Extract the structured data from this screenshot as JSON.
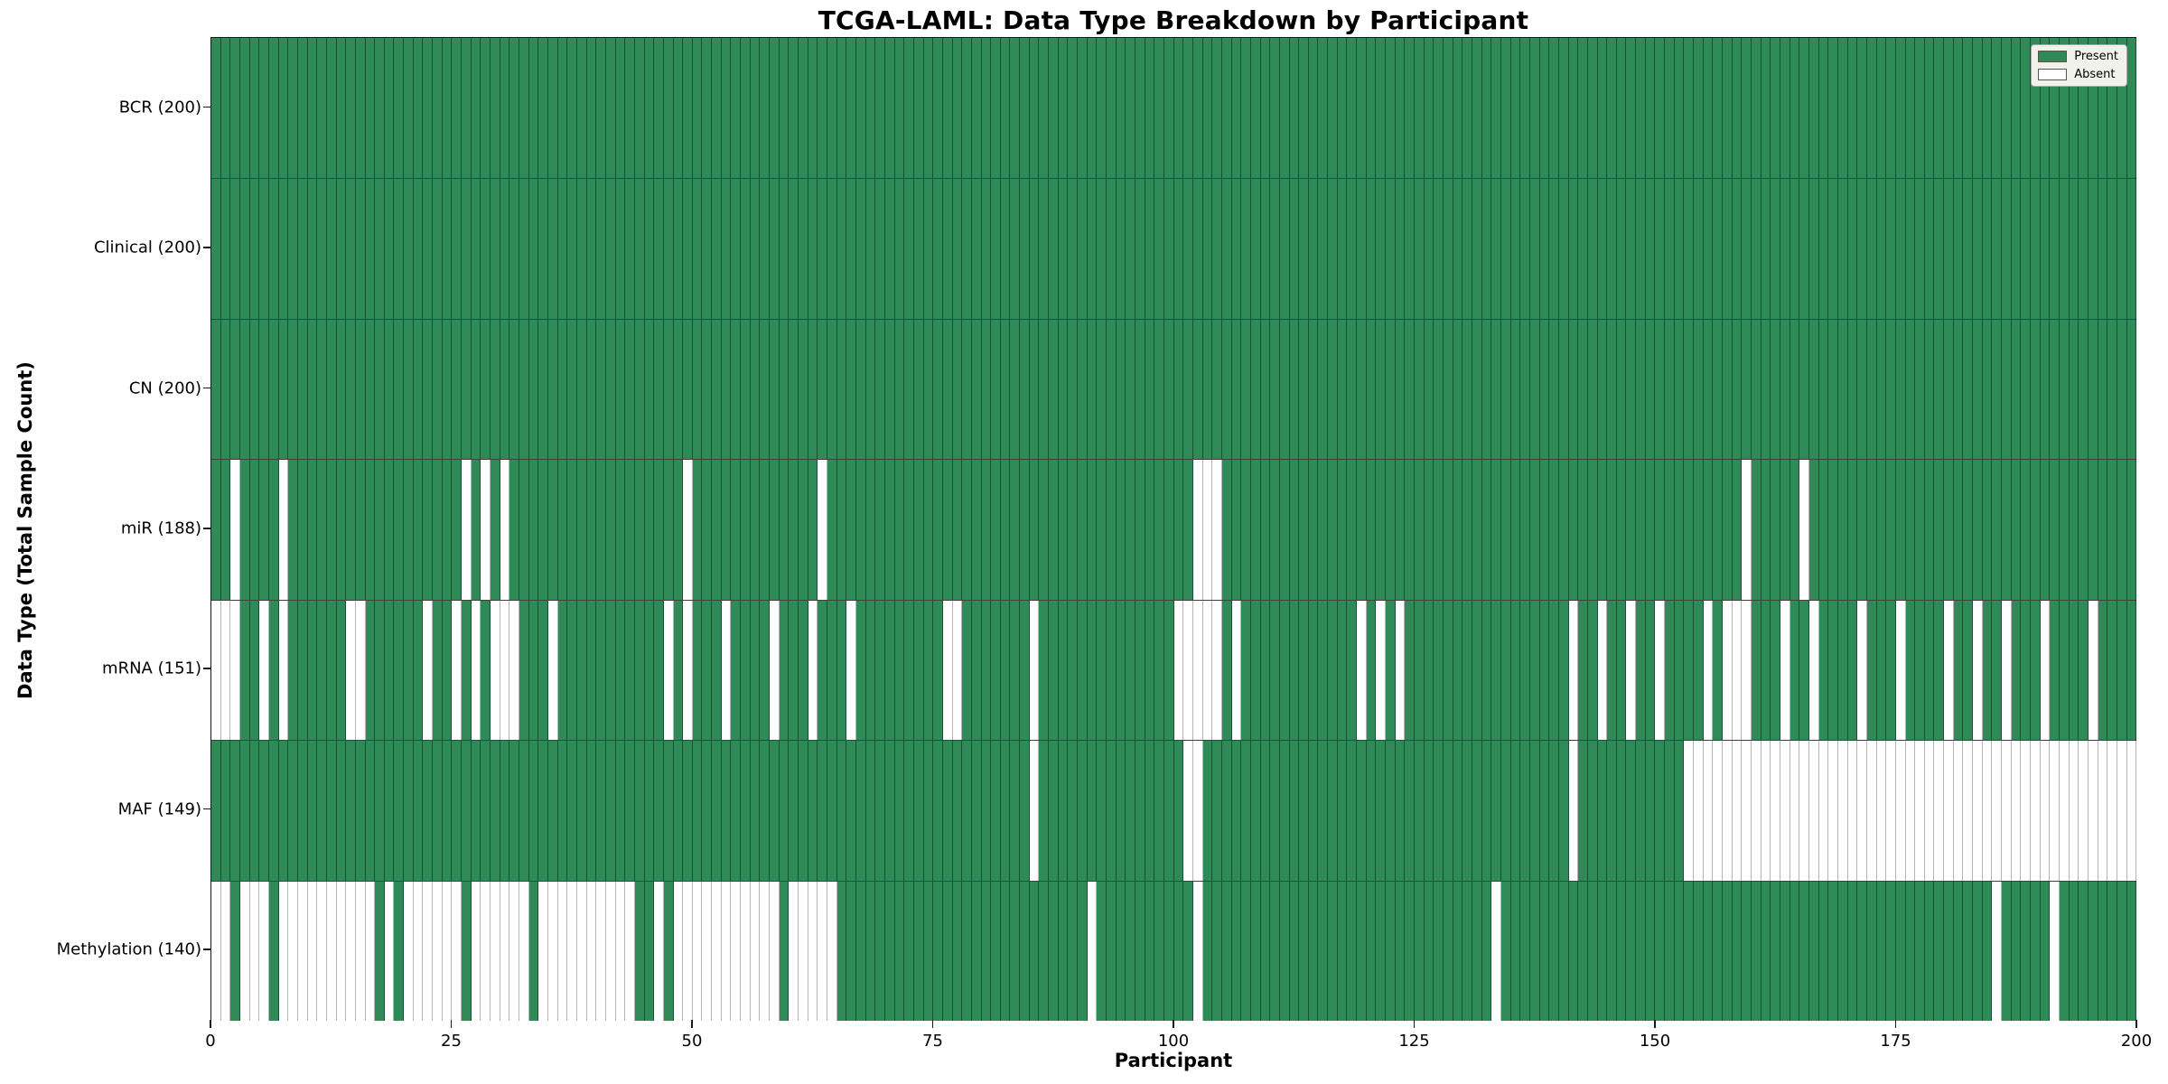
{
  "chart_data": {
    "type": "heatmap",
    "title": "TCGA-LAML: Data Type Breakdown by Participant",
    "xlabel": "Participant",
    "ylabel": "Data Type (Total Sample Count)",
    "n_participants": 200,
    "x_axis": {
      "range": [
        0,
        200
      ],
      "ticks": [
        0,
        25,
        50,
        75,
        100,
        125,
        150,
        175,
        200
      ]
    },
    "legend": [
      {
        "label": "Present",
        "value": 1
      },
      {
        "label": "Absent",
        "value": 0
      }
    ],
    "colors": {
      "present": "#2e8b57",
      "absent": "#ffffff",
      "present_cell_edge": "rgba(10,35,20,0.55)",
      "absent_cell_edge": "rgba(90,90,90,0.45)",
      "row_separator": "rgba(0,0,0,0.75)",
      "plot_border": "#1a1a1a",
      "legend_bg": "#f1f2ea"
    },
    "rows": [
      {
        "name": "BCR",
        "label": "BCR (200)",
        "present_count": 200,
        "absent_participants": []
      },
      {
        "name": "Clinical",
        "label": "Clinical (200)",
        "present_count": 200,
        "absent_participants": []
      },
      {
        "name": "CN",
        "label": "CN (200)",
        "present_count": 200,
        "absent_participants": []
      },
      {
        "name": "miR",
        "label": "miR (188)",
        "present_count": 188,
        "absent_participants": [
          2,
          7,
          26,
          28,
          30,
          49,
          63,
          102,
          103,
          104,
          159,
          165
        ]
      },
      {
        "name": "mRNA",
        "label": "mRNA (151)",
        "present_count": 151,
        "absent_participants": [
          0,
          1,
          2,
          5,
          7,
          14,
          15,
          22,
          25,
          27,
          29,
          30,
          31,
          35,
          47,
          49,
          53,
          58,
          62,
          66,
          76,
          77,
          85,
          100,
          101,
          102,
          103,
          104,
          106,
          119,
          121,
          123,
          141,
          144,
          147,
          150,
          155,
          157,
          158,
          159,
          163,
          166,
          171,
          175,
          180,
          183,
          186,
          190,
          195
        ]
      },
      {
        "name": "MAF",
        "label": "MAF (149)",
        "present_count": 149,
        "absent_participants": [
          85,
          101,
          102,
          141,
          153,
          154,
          155,
          156,
          157,
          158,
          159,
          160,
          161,
          162,
          163,
          164,
          165,
          166,
          167,
          168,
          169,
          170,
          171,
          172,
          173,
          174,
          175,
          176,
          177,
          178,
          179,
          180,
          181,
          182,
          183,
          184,
          185,
          186,
          187,
          188,
          189,
          190,
          191,
          192,
          193,
          194,
          195,
          196,
          197,
          198,
          199
        ]
      },
      {
        "name": "Methylation",
        "label": "Methylation (140)",
        "present_count": 140,
        "absent_participants": [
          0,
          1,
          3,
          4,
          5,
          7,
          8,
          9,
          10,
          11,
          12,
          13,
          14,
          15,
          16,
          18,
          20,
          21,
          22,
          23,
          24,
          25,
          27,
          28,
          29,
          30,
          31,
          32,
          34,
          35,
          36,
          37,
          38,
          39,
          40,
          41,
          42,
          43,
          46,
          48,
          49,
          50,
          51,
          52,
          53,
          54,
          55,
          56,
          57,
          58,
          60,
          61,
          62,
          63,
          64,
          91,
          102,
          133,
          185,
          191
        ]
      }
    ]
  }
}
